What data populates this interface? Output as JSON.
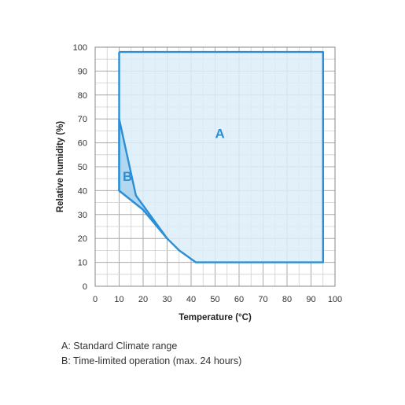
{
  "chart_data": {
    "type": "area",
    "xlabel": "Temperature (°C)",
    "ylabel": "Relative humidity (%)",
    "xlim": [
      0,
      100
    ],
    "ylim": [
      0,
      100
    ],
    "x_ticks": [
      0,
      10,
      20,
      30,
      40,
      50,
      60,
      70,
      80,
      90,
      100
    ],
    "y_ticks": [
      0,
      10,
      20,
      30,
      40,
      50,
      60,
      70,
      80,
      90,
      100
    ],
    "grid": true,
    "grid_minor_step": 5,
    "series": [
      {
        "name": "A",
        "color": "#2a8fd6",
        "fill": "#dcedf8",
        "points": [
          [
            10,
            98
          ],
          [
            95,
            98
          ],
          [
            95,
            10
          ],
          [
            42,
            10
          ],
          [
            35,
            15
          ],
          [
            30,
            20
          ],
          [
            20,
            32
          ],
          [
            10,
            40
          ],
          [
            10,
            98
          ]
        ]
      },
      {
        "name": "B",
        "color": "#2a8fd6",
        "fill": "#a9d2ef",
        "points": [
          [
            10,
            70
          ],
          [
            17,
            38
          ],
          [
            30,
            20
          ],
          [
            20,
            32
          ],
          [
            10,
            40
          ],
          [
            10,
            70
          ]
        ]
      }
    ],
    "annotations": [
      {
        "text": "A",
        "x": 52,
        "y": 62
      },
      {
        "text": "B",
        "x": 13.5,
        "y": 44
      }
    ]
  },
  "legend": {
    "line_a": "A: Standard Climate range",
    "line_b": "B: Time-limited operation (max. 24 hours)"
  }
}
